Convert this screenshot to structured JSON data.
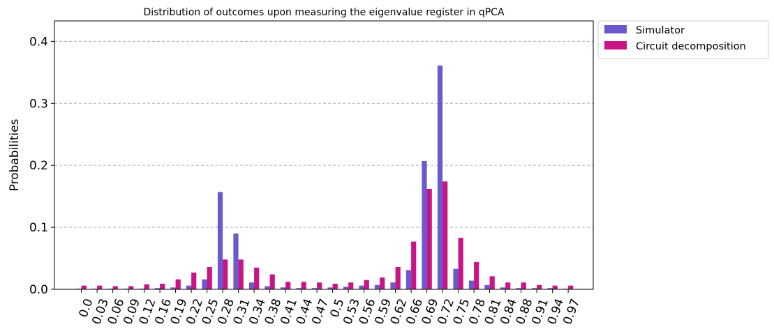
{
  "chart_data": {
    "type": "bar",
    "title": "Distribution of outcomes upon measuring the eigenvalue register in qPCA",
    "xlabel": "",
    "ylabel": "Probabilities",
    "ylim": [
      0,
      0.433
    ],
    "yticks": [
      "0.0",
      "0.1",
      "0.2",
      "0.3",
      "0.4"
    ],
    "grid": "y dashed",
    "legend_position": "outside top-right",
    "categories": [
      "0.0",
      "0.03",
      "0.06",
      "0.09",
      "0.12",
      "0.16",
      "0.19",
      "0.22",
      "0.25",
      "0.28",
      "0.31",
      "0.34",
      "0.38",
      "0.41",
      "0.44",
      "0.47",
      "0.5",
      "0.53",
      "0.56",
      "0.59",
      "0.62",
      "0.66",
      "0.69",
      "0.72",
      "0.75",
      "0.78",
      "0.81",
      "0.84",
      "0.88",
      "0.91",
      "0.94",
      "0.97"
    ],
    "series": [
      {
        "name": "Simulator",
        "color": "#6a5acd",
        "values": [
          0.001,
          0.001,
          0.001,
          0.001,
          0.001,
          0.002,
          0.003,
          0.006,
          0.016,
          0.157,
          0.09,
          0.011,
          0.005,
          0.003,
          0.002,
          0.002,
          0.003,
          0.004,
          0.006,
          0.007,
          0.011,
          0.031,
          0.207,
          0.361,
          0.033,
          0.014,
          0.007,
          0.003,
          0.002,
          0.002,
          0.002,
          0.001
        ]
      },
      {
        "name": "Circuit decomposition",
        "color": "#c71585",
        "values": [
          0.006,
          0.006,
          0.005,
          0.005,
          0.008,
          0.009,
          0.016,
          0.027,
          0.036,
          0.048,
          0.048,
          0.035,
          0.024,
          0.012,
          0.012,
          0.011,
          0.009,
          0.011,
          0.015,
          0.019,
          0.036,
          0.077,
          0.162,
          0.174,
          0.083,
          0.044,
          0.021,
          0.011,
          0.011,
          0.007,
          0.006,
          0.006
        ]
      }
    ]
  }
}
